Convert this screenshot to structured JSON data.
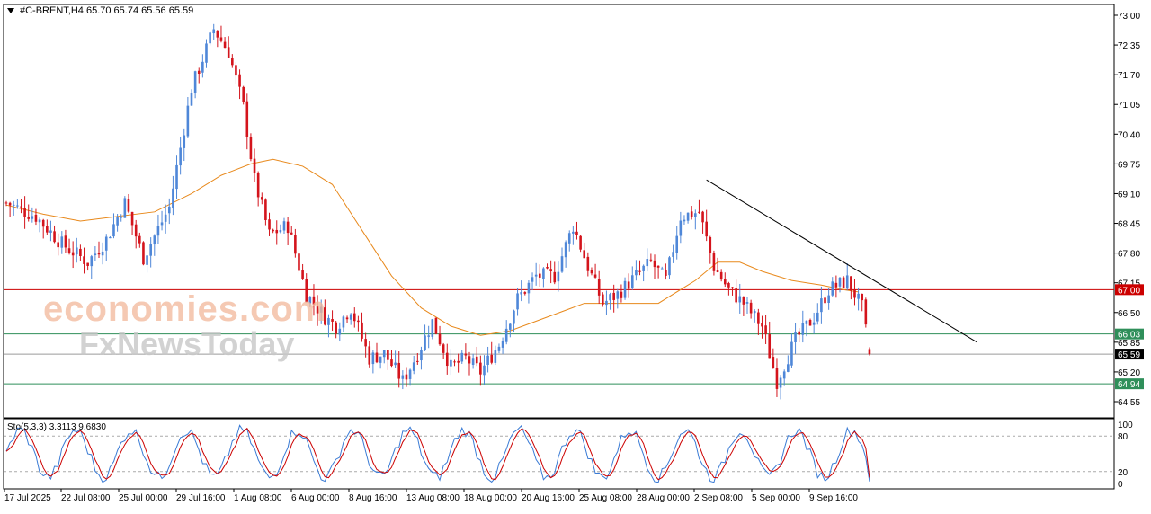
{
  "header": {
    "symbol_line": "#C-BRENT,H4  65.70 65.74 65.56 65.59"
  },
  "stoch_header": {
    "text": "Sto(5,3,3) 3.3113 9.6830"
  },
  "watermark": {
    "line1": "economies.com",
    "line2": "FxNewsToday"
  },
  "colors": {
    "bull": "#4f87d8",
    "bear": "#d4141c",
    "ma": "#e8891c",
    "resistance": "#cc0000",
    "support": "#2f8f5a",
    "price_line": "#9a9a9a",
    "trendline": "#000000",
    "stoch_main": "#3a7bd5",
    "stoch_signal": "#cc0000"
  },
  "chart_data": [
    {
      "type": "candlestick",
      "title": "#C-BRENT,H4",
      "ohlc": {
        "open": 65.7,
        "high": 65.74,
        "low": 65.56,
        "close": 65.59
      },
      "ylim": [
        64.55,
        73.0
      ],
      "y_ticks": [
        "73.00",
        "72.35",
        "71.70",
        "71.05",
        "70.40",
        "69.75",
        "69.10",
        "68.45",
        "67.80",
        "67.15",
        "66.50",
        "65.85",
        "65.20",
        "64.55"
      ],
      "x_ticks": [
        "17 Jul 2025",
        "22 Jul 08:00",
        "25 Jul 00:00",
        "29 Jul 16:00",
        "1 Aug 08:00",
        "6 Aug 00:00",
        "8 Aug 16:00",
        "13 Aug 08:00",
        "18 Aug 00:00",
        "20 Aug 16:00",
        "25 Aug 08:00",
        "28 Aug 00:00",
        "2 Sep 08:00",
        "5 Sep 00:00",
        "9 Sep 16:00"
      ],
      "price_anchors": [
        [
          0,
          68.9
        ],
        [
          8,
          68.6
        ],
        [
          15,
          68.0
        ],
        [
          22,
          67.6
        ],
        [
          27,
          68.1
        ],
        [
          32,
          68.9
        ],
        [
          37,
          67.7
        ],
        [
          44,
          68.8
        ],
        [
          50,
          71.4
        ],
        [
          56,
          72.7
        ],
        [
          60,
          72.2
        ],
        [
          64,
          71.0
        ],
        [
          67,
          69.4
        ],
        [
          71,
          68.2
        ],
        [
          76,
          68.4
        ],
        [
          81,
          66.9
        ],
        [
          86,
          66.4
        ],
        [
          89,
          66.2
        ],
        [
          93,
          66.6
        ],
        [
          98,
          65.5
        ],
        [
          102,
          65.6
        ],
        [
          107,
          65.0
        ],
        [
          111,
          65.6
        ],
        [
          115,
          66.3
        ],
        [
          120,
          65.3
        ],
        [
          124,
          65.5
        ],
        [
          128,
          65.2
        ],
        [
          133,
          65.8
        ],
        [
          138,
          66.8
        ],
        [
          143,
          67.3
        ],
        [
          148,
          67.3
        ],
        [
          153,
          68.4
        ],
        [
          157,
          67.5
        ],
        [
          161,
          66.7
        ],
        [
          165,
          66.9
        ],
        [
          170,
          67.3
        ],
        [
          174,
          67.6
        ],
        [
          178,
          67.2
        ],
        [
          182,
          68.6
        ],
        [
          187,
          68.7
        ],
        [
          191,
          67.5
        ],
        [
          195,
          67.0
        ],
        [
          199,
          66.7
        ],
        [
          204,
          66.2
        ],
        [
          208,
          65.0
        ],
        [
          213,
          65.9
        ],
        [
          218,
          66.4
        ],
        [
          222,
          67.0
        ],
        [
          227,
          67.2
        ],
        [
          231,
          66.6
        ],
        [
          233,
          65.59
        ]
      ],
      "moving_average": [
        [
          0,
          68.85
        ],
        [
          10,
          68.65
        ],
        [
          20,
          68.5
        ],
        [
          30,
          68.6
        ],
        [
          40,
          68.7
        ],
        [
          50,
          69.1
        ],
        [
          58,
          69.5
        ],
        [
          66,
          69.75
        ],
        [
          72,
          69.85
        ],
        [
          80,
          69.7
        ],
        [
          88,
          69.3
        ],
        [
          96,
          68.3
        ],
        [
          104,
          67.3
        ],
        [
          112,
          66.6
        ],
        [
          120,
          66.2
        ],
        [
          128,
          66.0
        ],
        [
          136,
          66.1
        ],
        [
          146,
          66.4
        ],
        [
          156,
          66.7
        ],
        [
          166,
          66.7
        ],
        [
          176,
          66.7
        ],
        [
          186,
          67.2
        ],
        [
          192,
          67.6
        ],
        [
          198,
          67.6
        ],
        [
          204,
          67.4
        ],
        [
          212,
          67.2
        ],
        [
          220,
          67.1
        ],
        [
          226,
          67.0
        ],
        [
          230,
          66.95
        ]
      ],
      "levels": [
        {
          "name": "resistance",
          "value": 67.0,
          "label": "67.00"
        },
        {
          "name": "support-upper",
          "value": 66.03,
          "label": "66.03"
        },
        {
          "name": "support-lower",
          "value": 64.94,
          "label": "64.94"
        },
        {
          "name": "current-price",
          "value": 65.59,
          "label": "65.59"
        }
      ],
      "trendline": {
        "from": [
          189,
          69.4
        ],
        "to": [
          262,
          65.85
        ]
      },
      "grid": false
    },
    {
      "type": "line",
      "title": "Sto(5,3,3) 3.3113 9.6830",
      "ylim": [
        0,
        100
      ],
      "y_ticks": [
        "100",
        "80",
        "20",
        "0"
      ],
      "levels": [
        80,
        20
      ],
      "main_last": 3.3113,
      "signal_last": 9.683
    }
  ]
}
